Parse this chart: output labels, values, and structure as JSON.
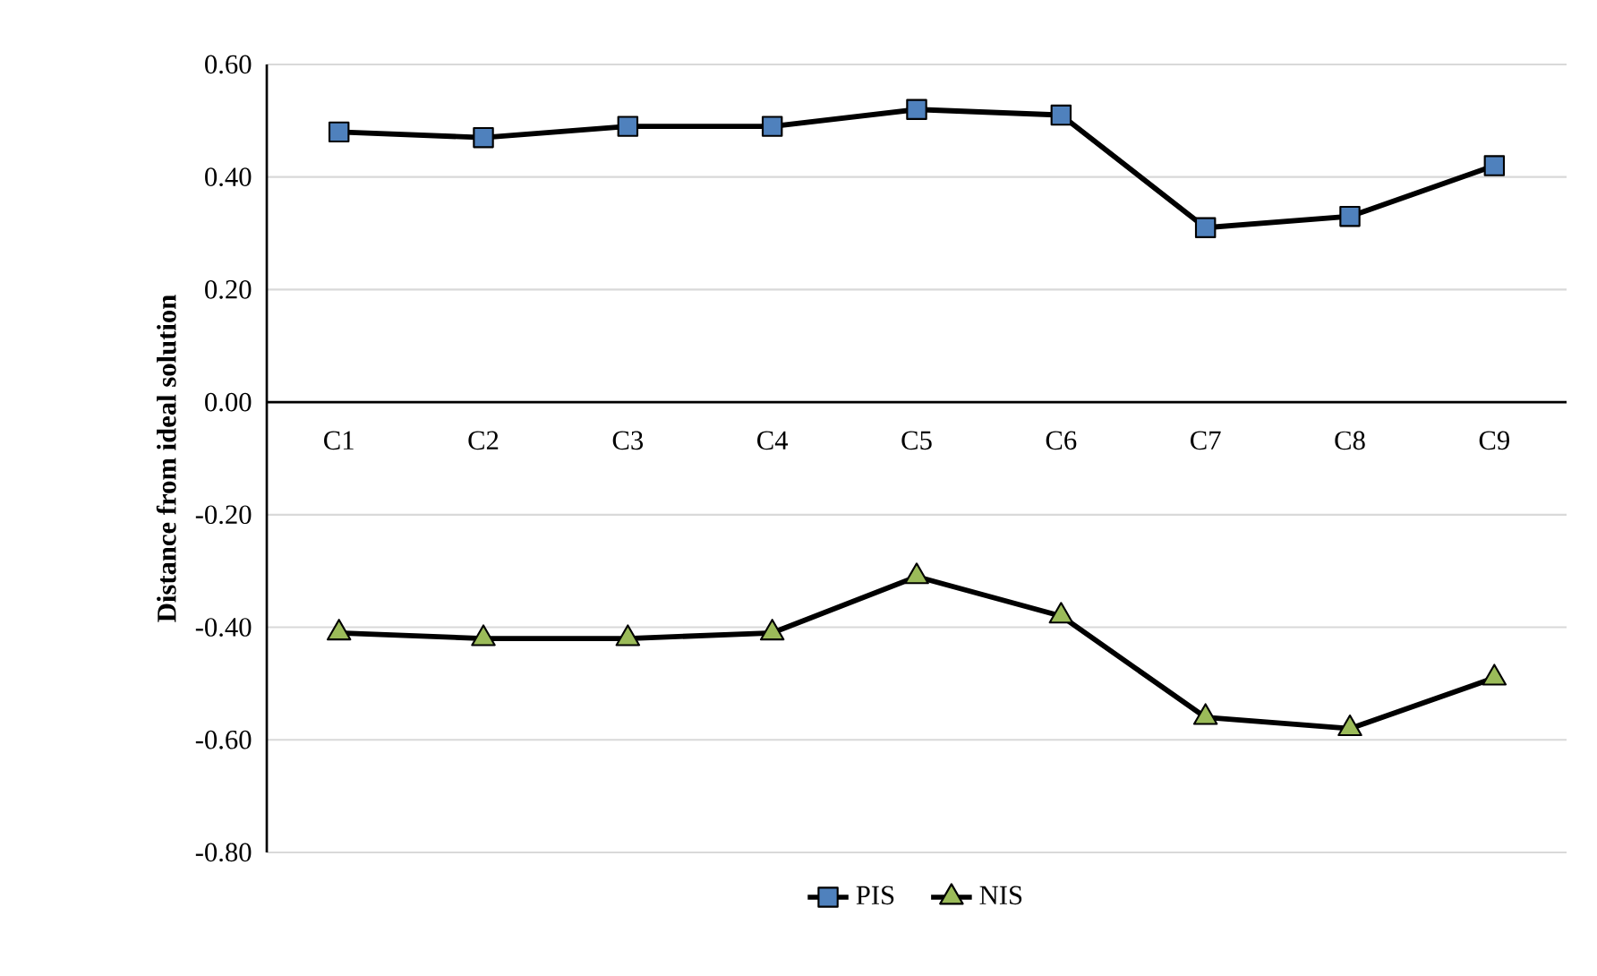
{
  "chart_data": {
    "type": "line",
    "ylabel": "Distance from ideal solution",
    "categories": [
      "C1",
      "C2",
      "C3",
      "C4",
      "C5",
      "C6",
      "C7",
      "C8",
      "C9"
    ],
    "series": [
      {
        "name": "PIS",
        "color": "#4f81bd",
        "marker": "square",
        "values": [
          0.48,
          0.47,
          0.49,
          0.49,
          0.52,
          0.51,
          0.31,
          0.33,
          0.42
        ]
      },
      {
        "name": "NIS",
        "color": "#9bbb59",
        "marker": "triangle",
        "values": [
          -0.41,
          -0.42,
          -0.42,
          -0.41,
          -0.31,
          -0.38,
          -0.56,
          -0.58,
          -0.49
        ]
      }
    ],
    "ylim": [
      -0.8,
      0.6
    ],
    "yticks": [
      {
        "value": -0.8,
        "label": "-0.80"
      },
      {
        "value": -0.6,
        "label": "-0.60"
      },
      {
        "value": -0.4,
        "label": "-0.40"
      },
      {
        "value": -0.2,
        "label": "-0.20"
      },
      {
        "value": 0,
        "label": "0.00"
      },
      {
        "value": 0.2,
        "label": "0.20"
      },
      {
        "value": 0.4,
        "label": "0.40"
      },
      {
        "value": 0.6,
        "label": "0.60"
      }
    ],
    "grid": "y",
    "legend": "bottom",
    "line_style": "solid"
  }
}
